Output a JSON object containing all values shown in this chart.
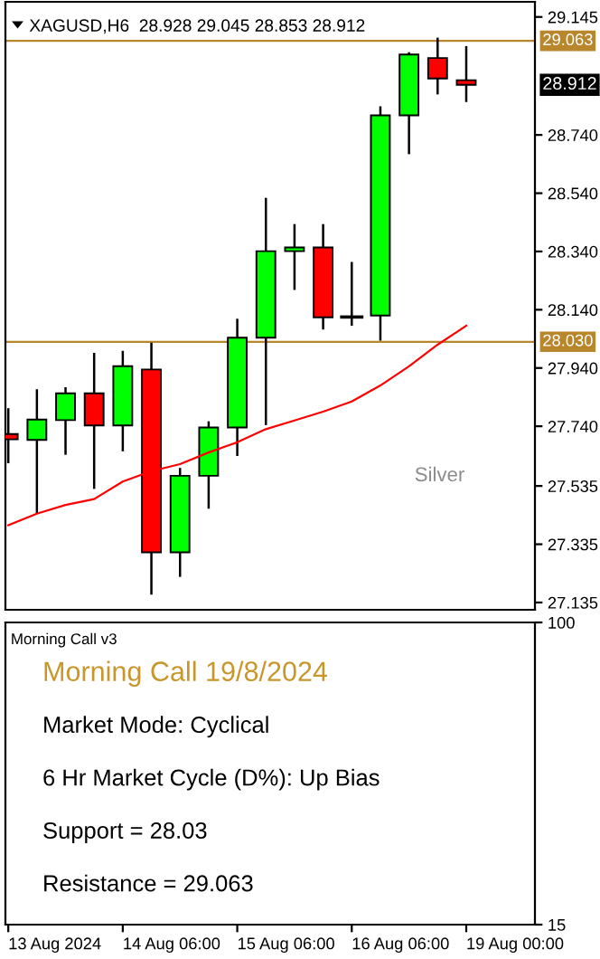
{
  "chart_data": [
    {
      "type": "candlestick",
      "title": "XAGUSD,H6  28.928 29.045 28.853 28.912",
      "categories": [
        null,
        null,
        null,
        null,
        null,
        null,
        null,
        null,
        null,
        null,
        null,
        null,
        null,
        null,
        null,
        null,
        null
      ],
      "ohlc": [
        [
          27.713,
          27.802,
          27.613,
          27.695
        ],
        [
          27.693,
          27.867,
          27.441,
          27.763
        ],
        [
          27.761,
          27.874,
          27.642,
          27.853
        ],
        [
          27.853,
          27.992,
          27.525,
          27.743
        ],
        [
          27.743,
          27.999,
          27.654,
          27.946
        ],
        [
          27.935,
          28.027,
          27.162,
          27.307
        ],
        [
          27.307,
          27.597,
          27.223,
          27.57
        ],
        [
          27.57,
          27.757,
          27.457,
          27.736
        ],
        [
          27.736,
          28.109,
          27.638,
          28.044
        ],
        [
          28.044,
          28.524,
          27.744,
          28.341
        ],
        [
          28.341,
          28.434,
          28.208,
          28.354
        ],
        [
          28.354,
          28.434,
          28.072,
          28.114
        ],
        [
          28.115,
          28.304,
          28.085,
          28.115
        ],
        [
          28.12,
          28.838,
          28.034,
          28.807
        ],
        [
          28.807,
          29.024,
          28.674,
          29.016
        ],
        [
          29.004,
          29.074,
          28.879,
          28.934
        ],
        [
          28.928,
          29.045,
          28.853,
          28.912
        ]
      ],
      "colors": [
        "#ff0000",
        "#00ff00",
        "#00ff00",
        "#ff0000",
        "#00ff00",
        "#ff0000",
        "#00ff00",
        "#00ff00",
        "#00ff00",
        "#00ff00",
        "#00ff00",
        "#ff0000",
        "#000000",
        "#00ff00",
        "#00ff00",
        "#ff0000",
        "#ff0000"
      ],
      "series": [
        {
          "type": "line",
          "color": "#ff0000",
          "values": [
            27.4,
            27.44,
            27.47,
            27.49,
            27.55,
            27.586,
            27.61,
            27.65,
            27.685,
            27.73,
            27.76,
            27.79,
            27.825,
            27.88,
            27.946,
            28.02,
            28.085
          ]
        }
      ],
      "ylim": [
        27.11,
        29.197
      ],
      "yticks": [
        27.135,
        27.335,
        27.535,
        {
          "value": 27.74,
          "label": "27.740"
        },
        {
          "value": 27.94,
          "label": "27.940"
        },
        {
          "value": 28.14,
          "label": "28.140"
        },
        {
          "value": 28.34,
          "label": "28.340"
        },
        {
          "value": 28.54,
          "label": "28.540"
        },
        {
          "value": 28.74,
          "label": "28.740"
        },
        29.145
      ],
      "ref_lines": [
        {
          "axis": "y",
          "value": 29.063,
          "label": "29.063",
          "color": "#b8862b"
        },
        {
          "axis": "y",
          "value": 28.03,
          "label": "28.030",
          "color": "#b8862b"
        }
      ],
      "annotations": [
        "28.912",
        "Silver"
      ],
      "tick_labels": "y",
      "grid": false,
      "legend": false
    },
    {
      "type": "line",
      "title": "Morning Call v3",
      "values": [
        null,
        null,
        null,
        null,
        null,
        null,
        null,
        null,
        null,
        null,
        null,
        null,
        null,
        null,
        null,
        null,
        null
      ],
      "categories": [
        "13 Aug 2024",
        null,
        null,
        null,
        "14 Aug 06:00",
        null,
        null,
        null,
        "15 Aug 06:00",
        null,
        null,
        null,
        "16 Aug 06:00",
        null,
        null,
        null,
        "19 Aug 00:00"
      ],
      "ylim": [
        15,
        100
      ],
      "yticks": [
        15,
        100
      ],
      "annotations": [
        "Morning Call 19/8/2024",
        "Market Mode: Cyclical",
        "6 Hr Market Cycle (D%): Up Bias",
        "Support = 28.03",
        "Resistance = 29.063"
      ]
    }
  ]
}
